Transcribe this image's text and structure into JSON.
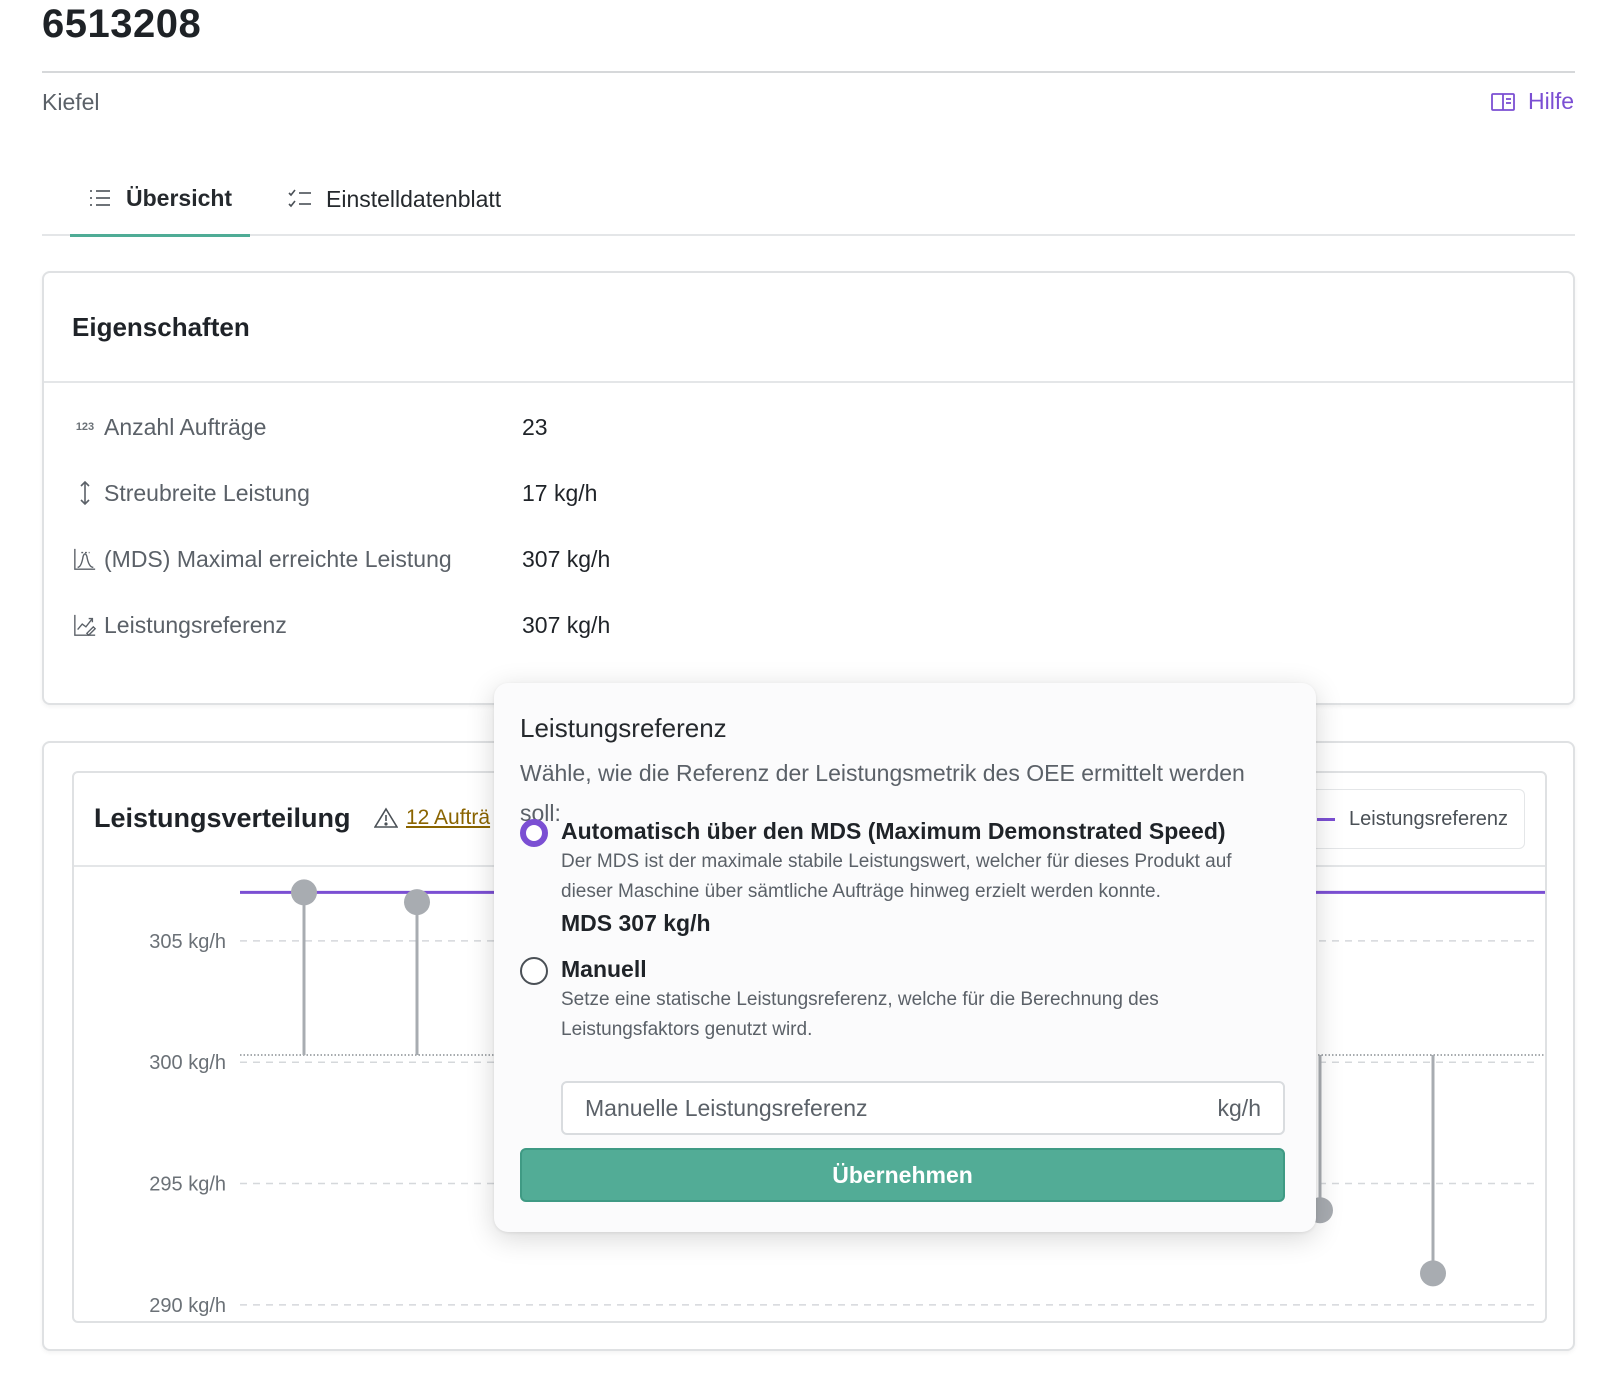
{
  "page": {
    "title": "6513208",
    "subtitle": "Kiefel"
  },
  "help": {
    "label": "Hilfe",
    "icon": "book-open-icon"
  },
  "tabs": [
    {
      "label": "Übersicht",
      "icon": "list-icon",
      "active": true
    },
    {
      "label": "Einstelldatenblatt",
      "icon": "checklist-icon",
      "active": false
    }
  ],
  "properties": {
    "title": "Eigenschaften",
    "rows": [
      {
        "label": "Anzahl Aufträge",
        "value": "23",
        "icon": "number-123-icon",
        "icon_text": "123"
      },
      {
        "label": "Streubreite Leistung",
        "value": "17 kg/h",
        "icon": "vertical-arrows-icon"
      },
      {
        "label": "(MDS) Maximal erreichte Leistung",
        "value": "307 kg/h",
        "icon": "peak-chart-icon"
      },
      {
        "label": "Leistungsreferenz",
        "value": "307 kg/h",
        "icon": "chart-edit-icon"
      }
    ]
  },
  "distribution": {
    "title": "Leistungsverteilung",
    "warning": {
      "label": "12 Aufträ",
      "icon": "warning-triangle-icon"
    },
    "legend": {
      "label": "Leistungsreferenz",
      "color": "#7b4fd3"
    }
  },
  "chart_data": {
    "type": "scatter",
    "title": "Leistungsverteilung",
    "y_ticks": [
      "305 kg/h",
      "300 kg/h",
      "295 kg/h",
      "290 kg/h"
    ],
    "ylim": [
      289.5,
      307.8
    ],
    "grid": true,
    "reference_line": {
      "name": "Leistungsreferenz",
      "value": 307,
      "color": "#7b4fd3"
    },
    "baseline": 300.3,
    "series": [
      {
        "values": [
          307,
          306.6,
          293.9,
          291.3
        ]
      }
    ],
    "colors": {
      "point": "#a8acb1",
      "grid": "#d5d8db"
    }
  },
  "popover": {
    "title": "Leistungsreferenz",
    "description": "Wähle, wie die Referenz der Leistungsmetrik des OEE ermittelt werden soll:",
    "option_auto": {
      "title": "Automatisch über den MDS (Maximum Demonstrated Speed)",
      "description": "Der MDS ist der maximale stabile Leistungswert, welcher für dieses Produkt auf dieser Maschine über sämtliche Aufträge hinweg erzielt werden konnte.",
      "value": "MDS 307 kg/h",
      "selected": true
    },
    "option_manual": {
      "title": "Manuell",
      "description": "Setze eine statische Leistungsreferenz, welche für die Berechnung des Leistungsfaktors genutzt wird.",
      "selected": false
    },
    "input": {
      "placeholder": "Manuelle Leistungsreferenz",
      "unit": "kg/h",
      "value": ""
    },
    "apply_label": "Übernehmen",
    "accent": "#7b4fd3",
    "button_color": "#52ac96"
  }
}
